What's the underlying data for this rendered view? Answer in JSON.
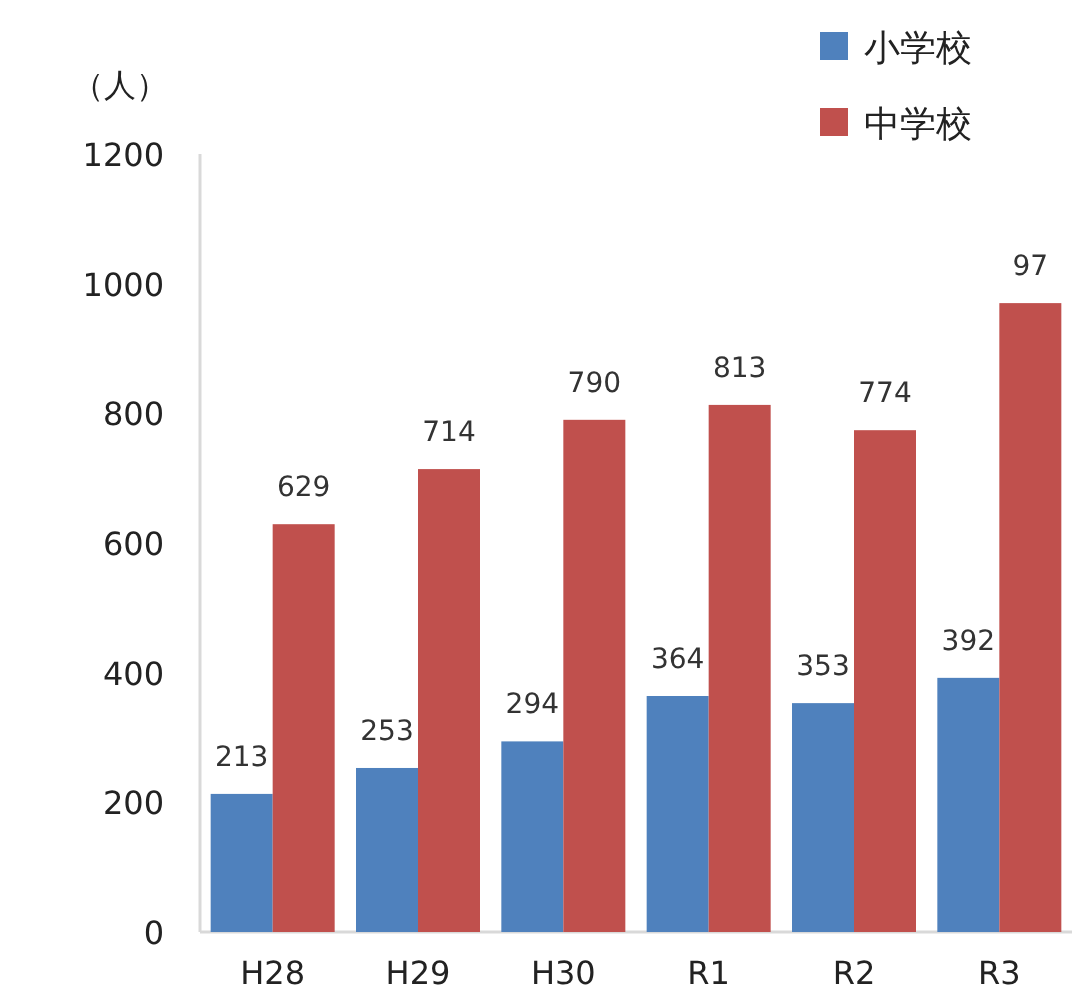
{
  "chart_data": {
    "type": "bar",
    "ylabel": "（人）",
    "categories": [
      "H28",
      "H29",
      "H30",
      "R1",
      "R2",
      "R3"
    ],
    "series": [
      {
        "name": "小学校",
        "color": "#4f81bd",
        "values": [
          213,
          253,
          294,
          364,
          353,
          392
        ],
        "value_labels": [
          "213",
          "253",
          "294",
          "364",
          "353",
          "392"
        ]
      },
      {
        "name": "中学校",
        "color": "#c0504d",
        "values": [
          629,
          714,
          790,
          813,
          774,
          970
        ],
        "value_labels": [
          "629",
          "714",
          "790",
          "813",
          "774",
          null
        ]
      }
    ],
    "annotations": [
      {
        "text": "97",
        "x": "R3",
        "y": 970
      }
    ],
    "ylim": [
      0,
      1200
    ],
    "yticks": [
      0,
      200,
      400,
      600,
      800,
      1000,
      1200
    ],
    "grid": false,
    "legend": "top right"
  }
}
